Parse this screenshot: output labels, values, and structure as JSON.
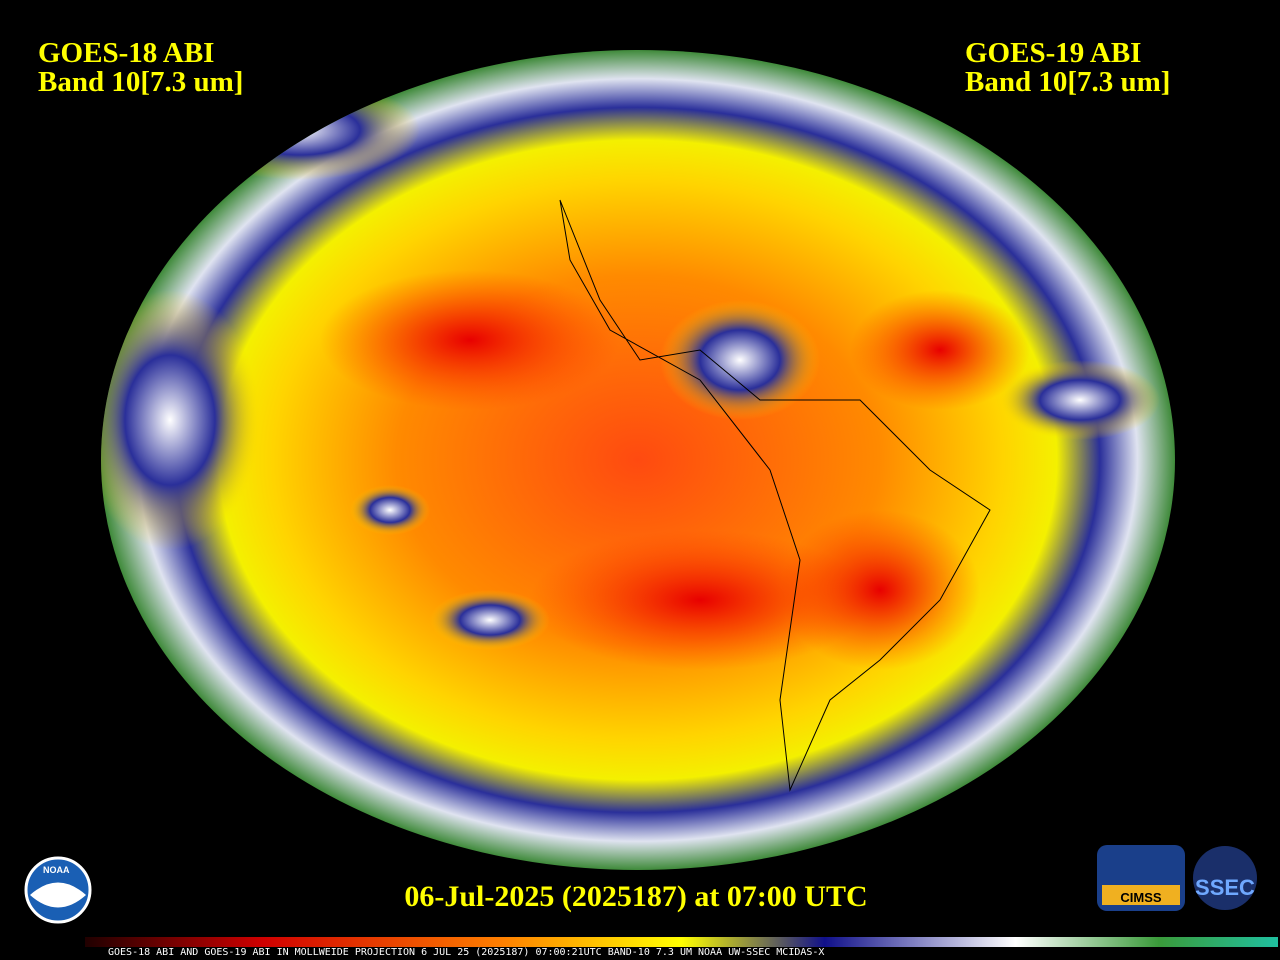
{
  "header": {
    "left": {
      "title": "GOES-18 ABI",
      "band": "Band 10[7.3 um]"
    },
    "right": {
      "title": "GOES-19 ABI",
      "band": "Band 10[7.3 um]"
    }
  },
  "timestamp": "06-Jul-2025 (2025187) at 07:00 UTC",
  "footer": "GOES-18 ABI AND GOES-19 ABI IN MOLLWEIDE PROJECTION 6 JUL 25 (2025187) 07:00:21UTC BAND-10 7.3 UM NOAA UW-SSEC MCIDAS-X",
  "logos": {
    "noaa": "NOAA",
    "cimss": "CIMSS",
    "ssec": "SSEC"
  }
}
